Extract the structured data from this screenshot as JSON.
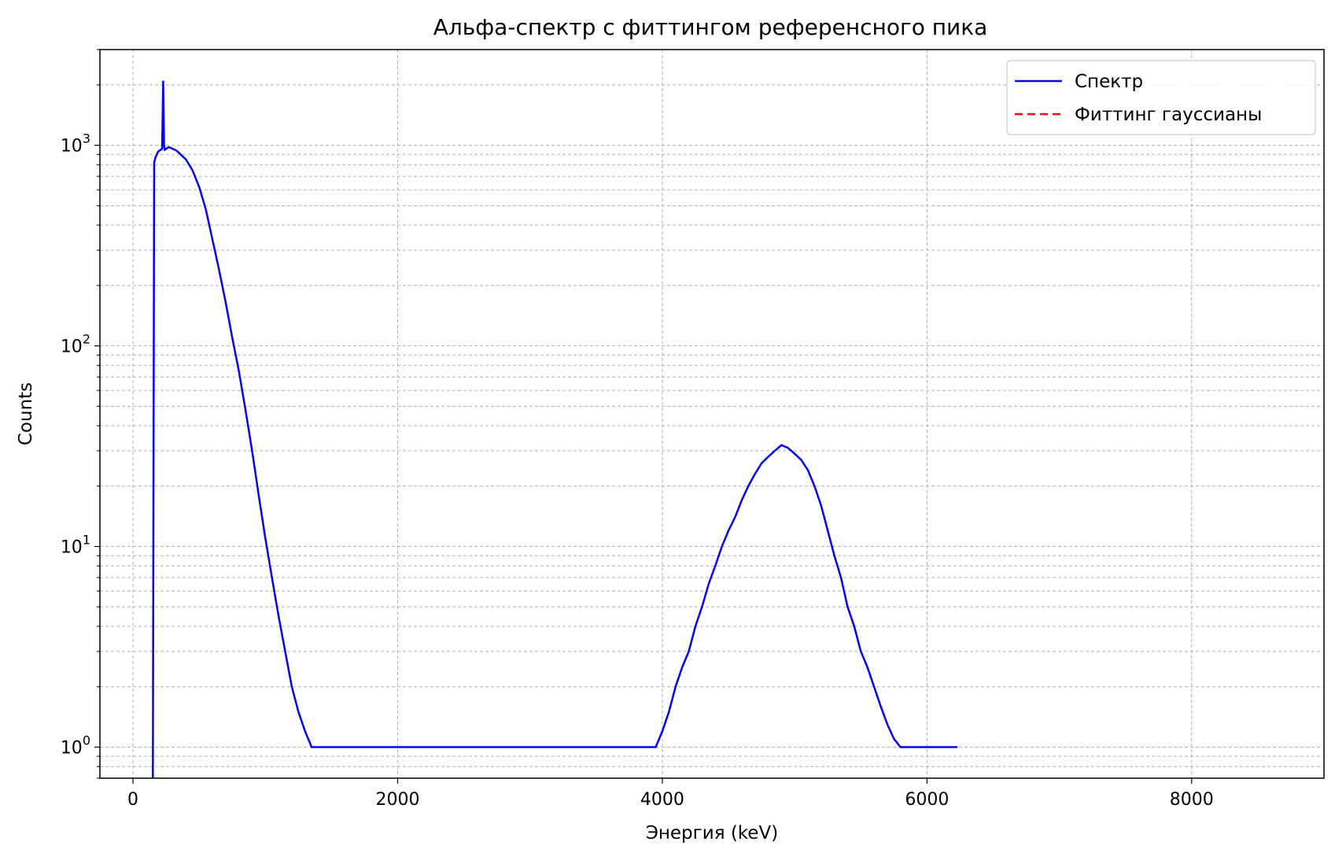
{
  "chart_data": {
    "type": "line",
    "title": "Альфа-спектр с фиттингом референсного пика",
    "xlabel": "Энергия (keV)",
    "ylabel": "Counts",
    "xlim": [
      -250,
      9000
    ],
    "ylim": [
      0.7,
      3000
    ],
    "yscale": "log",
    "xticks": [
      0,
      2000,
      4000,
      6000,
      8000
    ],
    "yticks": [
      {
        "value": 1,
        "base": "10",
        "exp": "0"
      },
      {
        "value": 10,
        "base": "10",
        "exp": "1"
      },
      {
        "value": 100,
        "base": "10",
        "exp": "2"
      },
      {
        "value": 1000,
        "base": "10",
        "exp": "3"
      }
    ],
    "grid": true,
    "legend_position": "top-right",
    "series": [
      {
        "name": "Спектр",
        "color": "#0000ff",
        "style": "solid",
        "x": [
          150,
          160,
          170,
          180,
          190,
          200,
          210,
          220,
          228,
          235,
          240,
          250,
          270,
          300,
          330,
          360,
          400,
          450,
          500,
          550,
          600,
          650,
          700,
          750,
          800,
          850,
          900,
          950,
          1000,
          1050,
          1100,
          1150,
          1200,
          1250,
          1300,
          1350,
          1400,
          1450,
          1500,
          2650,
          2860,
          3500,
          3690,
          3800,
          3870,
          3950,
          4000,
          4050,
          4100,
          4150,
          4200,
          4250,
          4300,
          4350,
          4400,
          4450,
          4500,
          4550,
          4600,
          4650,
          4700,
          4750,
          4800,
          4850,
          4900,
          4950,
          5000,
          5050,
          5100,
          5150,
          5200,
          5250,
          5300,
          5350,
          5400,
          5450,
          5500,
          5550,
          5600,
          5650,
          5700,
          5750,
          5800,
          5850,
          5900,
          5950,
          6000,
          6230
        ],
        "y": [
          0,
          820,
          870,
          900,
          930,
          940,
          950,
          960,
          2100,
          1000,
          950,
          960,
          980,
          960,
          940,
          900,
          850,
          750,
          620,
          480,
          340,
          240,
          165,
          110,
          75,
          48,
          30,
          18,
          11,
          7,
          4.5,
          3,
          2,
          1.5,
          1.2,
          1,
          1,
          1,
          1,
          1,
          1,
          1,
          1,
          1,
          1,
          1,
          1.2,
          1.5,
          2,
          2.5,
          3,
          4,
          5,
          6.5,
          8,
          10,
          12,
          14,
          17,
          20,
          23,
          26,
          28,
          30,
          32,
          31,
          29,
          27,
          24,
          20,
          16,
          12,
          9,
          7,
          5,
          4,
          3,
          2.5,
          2,
          1.6,
          1.3,
          1.1,
          1,
          1,
          1,
          1,
          1,
          1
        ]
      },
      {
        "name": "Фиттинг гауссианы",
        "color": "#ff0000",
        "style": "dashed",
        "x": [],
        "y": []
      }
    ]
  }
}
